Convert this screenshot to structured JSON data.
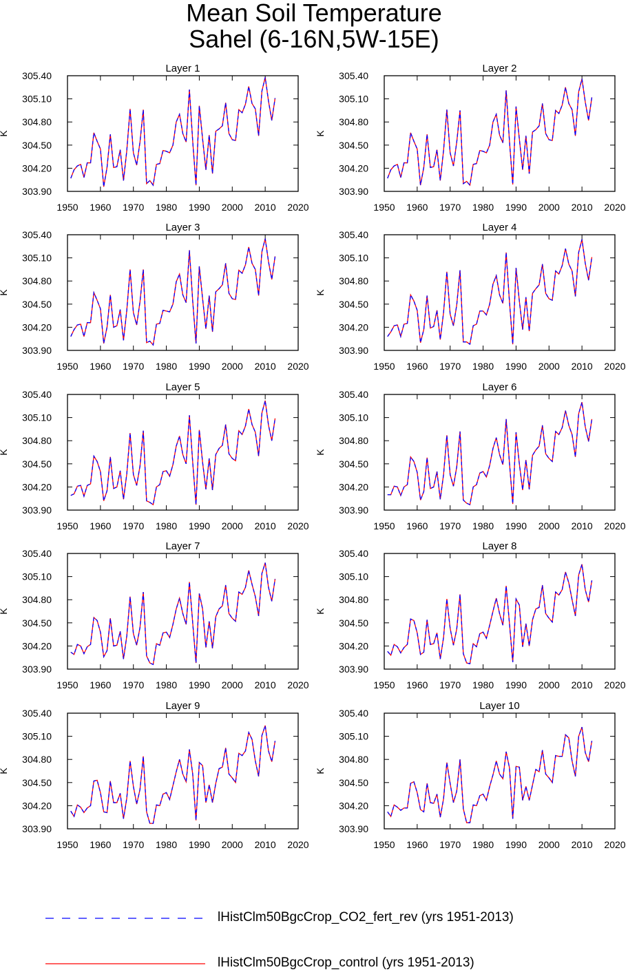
{
  "figure": {
    "title_line1": "Mean Soil Temperature",
    "title_line2": "Sahel (6-16N,5W-15E)"
  },
  "legend": {
    "items": [
      {
        "label": "lHistClm50BgcCrop_CO2_fert_rev (yrs 1951-2013)",
        "color": "#0000ff",
        "style": "dashed"
      },
      {
        "label": "lHistClm50BgcCrop_control (yrs 1951-2013)",
        "color": "#ff0000",
        "style": "solid"
      }
    ]
  },
  "chart_data": {
    "type": "line",
    "ylabel": "K",
    "xlim": [
      1950,
      2020
    ],
    "ylim": [
      303.9,
      305.4
    ],
    "xticks": [
      "1950",
      "1960",
      "1970",
      "1980",
      "1990",
      "2000",
      "2010",
      "2020"
    ],
    "yticks": [
      "303.90",
      "304.20",
      "304.50",
      "304.80",
      "305.10",
      "305.40"
    ],
    "x_start": 1951,
    "x_end": 2013,
    "series_names": [
      "lHistClm50BgcCrop_CO2_fert_rev (yrs 1951-2013)",
      "lHistClm50BgcCrop_control (yrs 1951-2013)"
    ],
    "panels": [
      {
        "title": "Layer 1",
        "values": [
          304.07,
          304.18,
          304.23,
          304.25,
          304.08,
          304.27,
          304.27,
          304.66,
          304.55,
          304.45,
          303.96,
          304.21,
          304.64,
          304.21,
          304.22,
          304.44,
          304.04,
          304.43,
          304.97,
          304.4,
          304.24,
          304.54,
          304.96,
          304.0,
          304.04,
          303.98,
          304.25,
          304.26,
          304.43,
          304.42,
          304.4,
          304.5,
          304.8,
          304.9,
          304.65,
          304.54,
          305.22,
          304.55,
          303.98,
          305.01,
          304.58,
          304.18,
          304.63,
          304.13,
          304.68,
          304.71,
          304.75,
          305.05,
          304.65,
          304.57,
          304.56,
          304.96,
          304.92,
          305.03,
          305.26,
          305.04,
          304.97,
          304.62,
          305.2,
          305.38,
          305.07,
          304.82,
          305.11
        ]
      },
      {
        "title": "Layer 2",
        "values": [
          304.07,
          304.18,
          304.23,
          304.25,
          304.08,
          304.27,
          304.27,
          304.66,
          304.55,
          304.45,
          303.98,
          304.21,
          304.64,
          304.21,
          304.22,
          304.44,
          304.04,
          304.43,
          304.96,
          304.4,
          304.23,
          304.54,
          304.95,
          304.0,
          304.03,
          303.98,
          304.25,
          304.26,
          304.43,
          304.42,
          304.4,
          304.5,
          304.8,
          304.9,
          304.63,
          304.53,
          305.21,
          304.55,
          303.99,
          305.0,
          304.58,
          304.18,
          304.62,
          304.13,
          304.67,
          304.7,
          304.75,
          305.04,
          304.65,
          304.57,
          304.56,
          304.95,
          304.91,
          305.02,
          305.25,
          305.04,
          304.96,
          304.62,
          305.19,
          305.36,
          305.06,
          304.82,
          305.12
        ]
      },
      {
        "title": "Layer 3",
        "values": [
          304.08,
          304.17,
          304.23,
          304.24,
          304.08,
          304.26,
          304.26,
          304.65,
          304.55,
          304.44,
          303.99,
          304.2,
          304.62,
          304.2,
          304.22,
          304.43,
          304.03,
          304.42,
          304.95,
          304.39,
          304.23,
          304.53,
          304.95,
          304.0,
          304.02,
          303.97,
          304.24,
          304.25,
          304.42,
          304.41,
          304.4,
          304.5,
          304.79,
          304.89,
          304.62,
          304.52,
          305.2,
          304.54,
          303.99,
          304.99,
          304.57,
          304.18,
          304.61,
          304.14,
          304.66,
          304.7,
          304.75,
          305.03,
          304.64,
          304.57,
          304.56,
          304.94,
          304.9,
          305.01,
          305.24,
          305.03,
          304.95,
          304.61,
          305.18,
          305.35,
          305.05,
          304.82,
          305.12
        ]
      },
      {
        "title": "Layer 4",
        "values": [
          304.08,
          304.14,
          304.22,
          304.23,
          304.08,
          304.24,
          304.25,
          304.62,
          304.54,
          304.42,
          304.0,
          304.17,
          304.61,
          304.19,
          304.21,
          304.42,
          304.04,
          304.39,
          304.92,
          304.37,
          304.22,
          304.49,
          304.94,
          304.01,
          304.01,
          303.98,
          304.22,
          304.24,
          304.41,
          304.41,
          304.36,
          304.5,
          304.76,
          304.87,
          304.62,
          304.51,
          305.17,
          304.53,
          303.98,
          304.97,
          304.54,
          304.17,
          304.59,
          304.15,
          304.64,
          304.7,
          304.75,
          305.02,
          304.64,
          304.57,
          304.55,
          304.93,
          304.89,
          305.0,
          305.22,
          305.02,
          304.93,
          304.6,
          305.17,
          305.34,
          305.03,
          304.81,
          305.11
        ]
      },
      {
        "title": "Layer 5",
        "values": [
          304.09,
          304.11,
          304.21,
          304.22,
          304.08,
          304.22,
          304.24,
          304.6,
          304.53,
          304.4,
          304.02,
          304.15,
          304.59,
          304.18,
          304.2,
          304.41,
          304.04,
          304.37,
          304.9,
          304.36,
          304.22,
          304.47,
          304.93,
          304.02,
          304.0,
          303.97,
          304.2,
          304.23,
          304.4,
          304.41,
          304.34,
          304.49,
          304.73,
          304.86,
          304.62,
          304.5,
          305.13,
          304.52,
          303.97,
          304.94,
          304.52,
          304.17,
          304.57,
          304.16,
          304.62,
          304.7,
          304.74,
          305.01,
          304.63,
          304.57,
          304.54,
          304.93,
          304.88,
          304.99,
          305.21,
          305.01,
          304.91,
          304.6,
          305.16,
          305.32,
          305.0,
          304.8,
          305.09
        ]
      },
      {
        "title": "Layer 6",
        "values": [
          304.1,
          304.1,
          304.21,
          304.2,
          304.09,
          304.2,
          304.23,
          304.59,
          304.53,
          304.39,
          304.03,
          304.14,
          304.58,
          304.18,
          304.2,
          304.4,
          304.04,
          304.36,
          304.87,
          304.36,
          304.21,
          304.46,
          304.92,
          304.03,
          303.99,
          303.97,
          304.2,
          304.23,
          304.38,
          304.4,
          304.33,
          304.48,
          304.7,
          304.84,
          304.62,
          304.49,
          305.08,
          304.51,
          303.98,
          304.91,
          304.5,
          304.16,
          304.55,
          304.17,
          304.61,
          304.68,
          304.73,
          305.0,
          304.63,
          304.57,
          304.53,
          304.92,
          304.88,
          304.97,
          305.19,
          305.0,
          304.88,
          304.59,
          305.15,
          305.3,
          304.98,
          304.79,
          305.08
        ]
      },
      {
        "title": "Layer 7",
        "values": [
          304.12,
          304.09,
          304.22,
          304.2,
          304.1,
          304.19,
          304.22,
          304.57,
          304.53,
          304.38,
          304.06,
          304.14,
          304.56,
          304.2,
          304.21,
          304.39,
          304.03,
          304.33,
          304.84,
          304.36,
          304.21,
          304.44,
          304.9,
          304.07,
          303.98,
          303.96,
          304.23,
          304.21,
          304.37,
          304.38,
          304.31,
          304.48,
          304.68,
          304.82,
          304.62,
          304.48,
          305.03,
          304.5,
          303.98,
          304.88,
          304.68,
          304.18,
          304.52,
          304.17,
          304.58,
          304.68,
          304.72,
          304.99,
          304.62,
          304.56,
          304.52,
          304.9,
          304.87,
          304.96,
          305.18,
          305.0,
          304.84,
          304.59,
          305.14,
          305.28,
          304.96,
          304.78,
          305.07
        ]
      },
      {
        "title": "Layer 8",
        "values": [
          304.13,
          304.08,
          304.22,
          304.19,
          304.11,
          304.18,
          304.22,
          304.55,
          304.53,
          304.37,
          304.09,
          304.12,
          304.54,
          304.22,
          304.23,
          304.37,
          304.03,
          304.31,
          304.81,
          304.43,
          304.21,
          304.42,
          304.87,
          304.1,
          303.98,
          303.97,
          304.23,
          304.19,
          304.36,
          304.38,
          304.3,
          304.47,
          304.65,
          304.82,
          304.62,
          304.47,
          304.98,
          304.49,
          303.99,
          304.81,
          304.73,
          304.19,
          304.49,
          304.2,
          304.54,
          304.68,
          304.7,
          304.99,
          304.62,
          304.56,
          304.51,
          304.9,
          304.86,
          304.93,
          305.16,
          305.02,
          304.8,
          304.59,
          305.12,
          305.26,
          304.93,
          304.77,
          305.05
        ]
      },
      {
        "title": "Layer 9",
        "values": [
          304.13,
          304.06,
          304.21,
          304.18,
          304.11,
          304.17,
          304.2,
          304.52,
          304.53,
          304.37,
          304.12,
          304.11,
          304.52,
          304.24,
          304.24,
          304.36,
          304.03,
          304.3,
          304.78,
          304.45,
          304.22,
          304.41,
          304.84,
          304.12,
          303.97,
          303.97,
          304.21,
          304.2,
          304.35,
          304.37,
          304.28,
          304.46,
          304.64,
          304.8,
          304.61,
          304.51,
          304.93,
          304.61,
          304.01,
          304.76,
          304.72,
          304.24,
          304.47,
          304.24,
          304.49,
          304.68,
          304.7,
          304.95,
          304.61,
          304.56,
          304.5,
          304.88,
          304.85,
          304.91,
          305.15,
          305.06,
          304.78,
          304.58,
          305.11,
          305.24,
          304.91,
          304.77,
          305.04
        ]
      },
      {
        "title": "Layer 10",
        "values": [
          304.12,
          304.06,
          304.21,
          304.18,
          304.14,
          304.17,
          304.17,
          304.49,
          304.51,
          304.37,
          304.15,
          304.12,
          304.49,
          304.24,
          304.23,
          304.35,
          304.05,
          304.29,
          304.76,
          304.49,
          304.24,
          304.39,
          304.8,
          304.16,
          303.98,
          303.98,
          304.21,
          304.2,
          304.33,
          304.35,
          304.27,
          304.45,
          304.6,
          304.78,
          304.61,
          304.55,
          304.9,
          304.69,
          304.03,
          304.71,
          304.7,
          304.27,
          304.45,
          304.27,
          304.47,
          304.67,
          304.64,
          304.92,
          304.61,
          304.56,
          304.5,
          304.85,
          304.84,
          304.84,
          305.12,
          305.08,
          304.78,
          304.58,
          305.1,
          305.22,
          304.89,
          304.77,
          305.04
        ]
      }
    ]
  }
}
